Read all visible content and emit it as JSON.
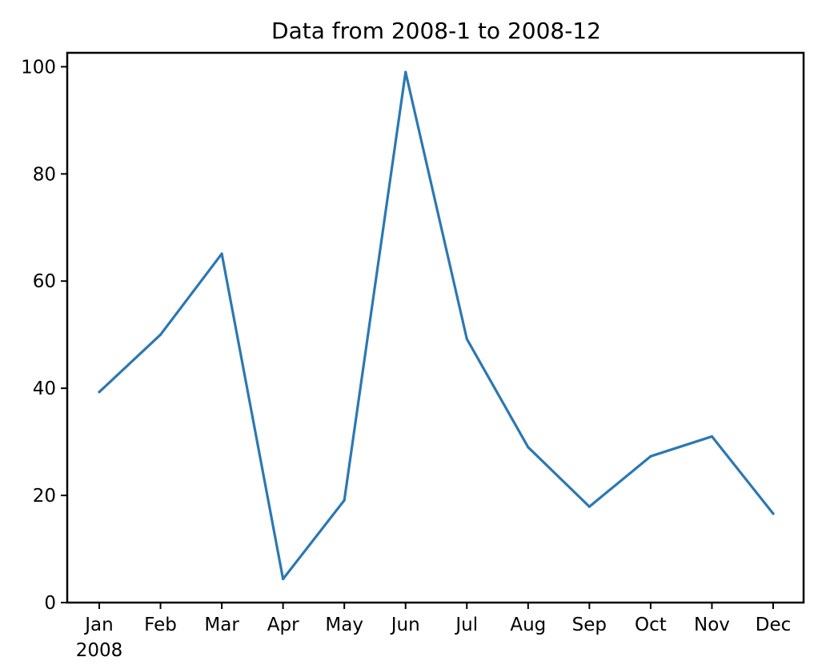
{
  "chart_data": {
    "type": "line",
    "title": "Data from 2008-1 to 2008-12",
    "xlabel": "",
    "ylabel": "",
    "x": [
      "2008-01",
      "2008-02",
      "2008-03",
      "2008-04",
      "2008-05",
      "2008-06",
      "2008-07",
      "2008-08",
      "2008-09",
      "2008-10",
      "2008-11",
      "2008-12"
    ],
    "x_tick_labels": [
      "Jan",
      "Feb",
      "Mar",
      "Apr",
      "May",
      "Jun",
      "Jul",
      "Aug",
      "Sep",
      "Oct",
      "Nov",
      "Dec"
    ],
    "x_tick_sublabel": "2008",
    "series": [
      {
        "values": [
          39.3,
          50.0,
          65.1,
          4.4,
          19.1,
          99.0,
          49.2,
          29.0,
          17.9,
          27.3,
          31.0,
          16.6
        ],
        "color": "#2b78b3"
      }
    ],
    "ylim": [
      0,
      102.6
    ],
    "y_ticks": [
      0,
      20,
      40,
      60,
      80,
      100
    ],
    "grid": false,
    "legend": false
  }
}
